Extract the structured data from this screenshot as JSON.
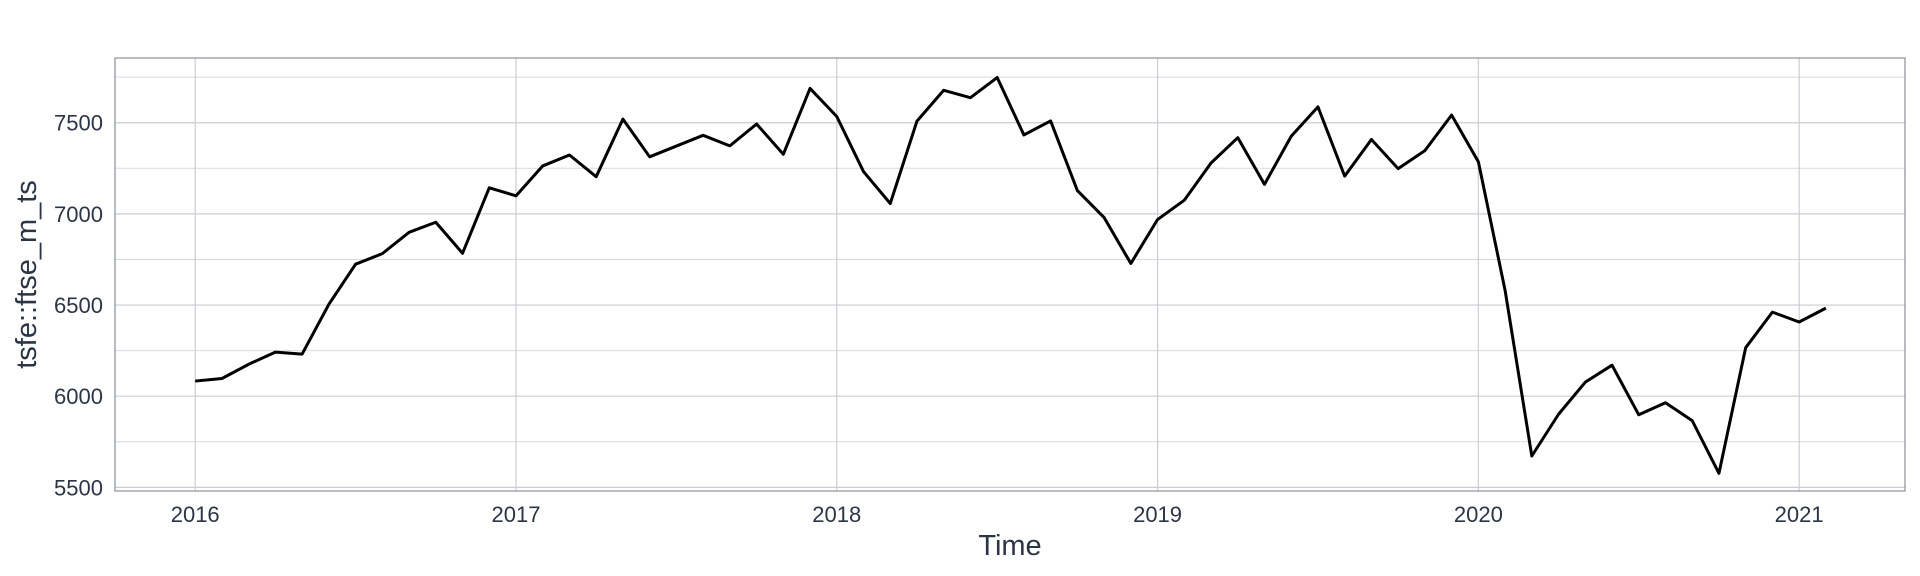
{
  "chart_data": {
    "type": "line",
    "title": "",
    "xlabel": "Time",
    "ylabel": "tsfe::ftse_m_ts",
    "xlim": [
      2015.75,
      2021.33
    ],
    "ylim": [
      5480,
      7855
    ],
    "x_ticks": [
      2016,
      2017,
      2018,
      2019,
      2020,
      2021
    ],
    "x_tick_labels": [
      "2016",
      "2017",
      "2018",
      "2019",
      "2020",
      "2021"
    ],
    "y_ticks": [
      5500,
      6000,
      6500,
      7000,
      7500
    ],
    "y_tick_labels": [
      "5500",
      "6000",
      "6500",
      "7000",
      "7500"
    ],
    "y_minor_ticks": [
      5750,
      6250,
      6750,
      7250,
      7750
    ],
    "grid": true,
    "start": {
      "year": 2016,
      "period": 1
    },
    "frequency": 12,
    "series": [
      {
        "color": "#000000",
        "values": [
          6083,
          6097,
          6175,
          6242,
          6231,
          6504,
          6724,
          6782,
          6899,
          6954,
          6784,
          7143,
          7099,
          7263,
          7323,
          7204,
          7520,
          7313,
          7372,
          7431,
          7373,
          7493,
          7327,
          7688,
          7534,
          7232,
          7057,
          7509,
          7678,
          7637,
          7748,
          7433,
          7510,
          7128,
          6980,
          6728,
          6969,
          7075,
          7279,
          7418,
          7162,
          7426,
          7587,
          7207,
          7408,
          7248,
          7347,
          7542,
          7286,
          6581,
          5672,
          5901,
          6077,
          6170,
          5898,
          5964,
          5866,
          5577,
          6266,
          6461,
          6407,
          6483
        ]
      }
    ]
  }
}
